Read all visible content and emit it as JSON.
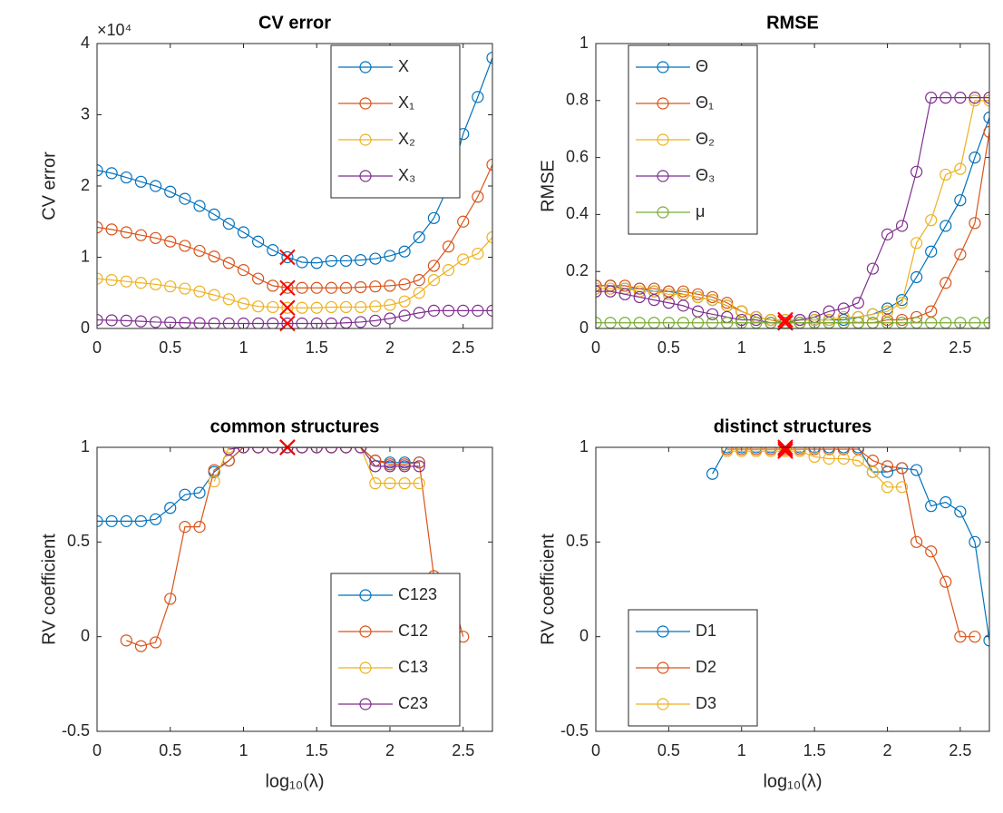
{
  "chart_data": [
    {
      "type": "line",
      "title": "CV error",
      "ylabel": "CV error",
      "y_multiplier": "×10⁴",
      "legend": "northeast",
      "x": [
        0,
        0.1,
        0.2,
        0.3,
        0.4,
        0.5,
        0.6,
        0.7,
        0.8,
        0.9,
        1,
        1.1,
        1.2,
        1.3,
        1.4,
        1.5,
        1.6,
        1.7,
        1.8,
        1.9,
        2,
        2.1,
        2.2,
        2.3,
        2.4,
        2.5,
        2.6,
        2.7
      ],
      "xlim": [
        0,
        2.7
      ],
      "xticks": [
        0,
        0.5,
        1,
        1.5,
        2,
        2.5
      ],
      "ylim": [
        0,
        40000
      ],
      "yticks": [
        {
          "value": 0,
          "label": "0"
        },
        {
          "value": 10000,
          "label": "1"
        },
        {
          "value": 20000,
          "label": "2"
        },
        {
          "value": 30000,
          "label": "3"
        },
        {
          "value": 40000,
          "label": "4"
        }
      ],
      "highlight_x": 1.3,
      "highlight_color": "#ff0000",
      "series": [
        {
          "name": "X",
          "color": "#0072bd",
          "values": [
            22200,
            21800,
            21200,
            20600,
            20000,
            19200,
            18200,
            17200,
            16000,
            14700,
            13500,
            12200,
            11000,
            10000,
            9300,
            9200,
            9500,
            9500,
            9600,
            9800,
            10200,
            10800,
            12800,
            15500,
            20000,
            27300,
            32500,
            38000
          ]
        },
        {
          "name": "X₁",
          "color": "#d95319",
          "values": [
            14200,
            13900,
            13500,
            13100,
            12700,
            12200,
            11600,
            10900,
            10100,
            9200,
            8200,
            7000,
            6000,
            5700,
            5700,
            5700,
            5700,
            5700,
            5800,
            5900,
            6000,
            6200,
            6800,
            8800,
            11500,
            15000,
            18500,
            23000
          ]
        },
        {
          "name": "X₂",
          "color": "#edb120",
          "values": [
            7000,
            6800,
            6600,
            6400,
            6200,
            5900,
            5600,
            5200,
            4700,
            4100,
            3500,
            3100,
            3000,
            2900,
            2900,
            2900,
            3000,
            3000,
            3000,
            3100,
            3300,
            3800,
            5000,
            6800,
            8200,
            9700,
            10500,
            12800
          ]
        },
        {
          "name": "X₃",
          "color": "#7e2f8e",
          "values": [
            1200,
            1150,
            1100,
            1000,
            900,
            850,
            800,
            750,
            700,
            700,
            700,
            700,
            700,
            700,
            700,
            700,
            700,
            800,
            900,
            1100,
            1400,
            1800,
            2200,
            2500,
            2500,
            2500,
            2500,
            2500
          ]
        }
      ]
    },
    {
      "type": "line",
      "title": "RMSE",
      "ylabel": "RMSE",
      "legend": "northwest",
      "x": [
        0,
        0.1,
        0.2,
        0.3,
        0.4,
        0.5,
        0.6,
        0.7,
        0.8,
        0.9,
        1,
        1.1,
        1.2,
        1.3,
        1.4,
        1.5,
        1.6,
        1.7,
        1.8,
        1.9,
        2,
        2.1,
        2.2,
        2.3,
        2.4,
        2.5,
        2.6,
        2.7
      ],
      "xlim": [
        0,
        2.7
      ],
      "xticks": [
        0,
        0.5,
        1,
        1.5,
        2,
        2.5
      ],
      "ylim": [
        0,
        1
      ],
      "yticks": [
        0,
        0.2,
        0.4,
        0.6,
        0.8,
        1
      ],
      "highlight_x": 1.3,
      "highlight_color": "#ff0000",
      "series": [
        {
          "name": "Θ",
          "color": "#0072bd",
          "values": [
            0.15,
            0.15,
            0.14,
            0.14,
            0.13,
            0.13,
            0.12,
            0.11,
            0.1,
            0.08,
            0.06,
            0.04,
            0.03,
            0.03,
            0.03,
            0.03,
            0.03,
            0.03,
            0.04,
            0.05,
            0.07,
            0.1,
            0.18,
            0.27,
            0.36,
            0.45,
            0.6,
            0.74
          ]
        },
        {
          "name": "Θ₁",
          "color": "#d95319",
          "values": [
            0.15,
            0.15,
            0.15,
            0.14,
            0.14,
            0.13,
            0.13,
            0.12,
            0.11,
            0.09,
            0.06,
            0.04,
            0.03,
            0.02,
            0.02,
            0.02,
            0.02,
            0.02,
            0.02,
            0.02,
            0.03,
            0.03,
            0.04,
            0.06,
            0.16,
            0.26,
            0.37,
            0.69
          ]
        },
        {
          "name": "Θ₂",
          "color": "#edb120",
          "values": [
            0.14,
            0.14,
            0.14,
            0.13,
            0.13,
            0.12,
            0.12,
            0.11,
            0.1,
            0.08,
            0.06,
            0.04,
            0.03,
            0.03,
            0.03,
            0.03,
            0.03,
            0.04,
            0.04,
            0.05,
            0.06,
            0.09,
            0.3,
            0.38,
            0.54,
            0.56,
            0.8,
            0.8
          ]
        },
        {
          "name": "Θ₃",
          "color": "#7e2f8e",
          "values": [
            0.13,
            0.13,
            0.12,
            0.11,
            0.1,
            0.09,
            0.08,
            0.06,
            0.05,
            0.04,
            0.03,
            0.03,
            0.02,
            0.02,
            0.03,
            0.04,
            0.06,
            0.07,
            0.09,
            0.21,
            0.33,
            0.36,
            0.55,
            0.81,
            0.81,
            0.81,
            0.81,
            0.81
          ]
        },
        {
          "name": "μ",
          "color": "#77ac30",
          "values": [
            0.02,
            0.02,
            0.02,
            0.02,
            0.02,
            0.02,
            0.02,
            0.02,
            0.02,
            0.02,
            0.02,
            0.02,
            0.02,
            0.02,
            0.02,
            0.02,
            0.02,
            0.02,
            0.02,
            0.02,
            0.02,
            0.02,
            0.02,
            0.02,
            0.02,
            0.02,
            0.02,
            0.02
          ]
        }
      ]
    },
    {
      "type": "line",
      "title": "common structures",
      "ylabel": "RV coefficient",
      "xlabel": "log₁₀(λ)",
      "legend": "southeast",
      "x": [
        0,
        0.1,
        0.2,
        0.3,
        0.4,
        0.5,
        0.6,
        0.7,
        0.8,
        0.9,
        1,
        1.1,
        1.2,
        1.3,
        1.4,
        1.5,
        1.6,
        1.7,
        1.8,
        1.9,
        2,
        2.1,
        2.2,
        2.3,
        2.4,
        2.5,
        2.6,
        2.7
      ],
      "xlim": [
        0,
        2.7
      ],
      "xticks": [
        0,
        0.5,
        1,
        1.5,
        2,
        2.5
      ],
      "ylim": [
        -0.5,
        1
      ],
      "yticks": [
        -0.5,
        0,
        0.5,
        1
      ],
      "highlight_x": 1.3,
      "highlight_color": "#ff0000",
      "series": [
        {
          "name": "C123",
          "color": "#0072bd",
          "values": [
            0.61,
            0.61,
            0.61,
            0.61,
            0.62,
            0.68,
            0.75,
            0.76,
            0.87,
            0.93,
            1,
            1,
            1,
            1,
            1,
            1,
            1,
            1,
            1,
            0.93,
            0.92,
            0.92,
            0.92,
            null,
            null,
            null,
            null,
            null
          ]
        },
        {
          "name": "C12",
          "color": "#d95319",
          "values": [
            null,
            null,
            -0.02,
            -0.05,
            -0.03,
            0.2,
            0.58,
            0.58,
            0.88,
            0.93,
            1,
            1,
            1,
            1,
            1,
            1,
            1,
            1,
            1,
            0.93,
            0.91,
            0.91,
            0.92,
            0.32,
            0.29,
            0.0,
            null,
            null
          ]
        },
        {
          "name": "C13",
          "color": "#edb120",
          "values": [
            null,
            null,
            null,
            null,
            null,
            null,
            null,
            null,
            0.82,
            1,
            1,
            1,
            1,
            1,
            1,
            1,
            1,
            1,
            1,
            0.81,
            0.81,
            0.81,
            0.81,
            null,
            null,
            null,
            null,
            null
          ]
        },
        {
          "name": "C23",
          "color": "#7e2f8e",
          "values": [
            null,
            null,
            null,
            null,
            null,
            null,
            null,
            null,
            null,
            0.99,
            1,
            1,
            1,
            1,
            1,
            1,
            1,
            1,
            1,
            0.9,
            0.9,
            0.9,
            0.9,
            null,
            null,
            null,
            null,
            null
          ]
        }
      ]
    },
    {
      "type": "line",
      "title": "distinct structures",
      "ylabel": "RV coefficient",
      "xlabel": "log₁₀(λ)",
      "legend": "southwest",
      "x": [
        0,
        0.1,
        0.2,
        0.3,
        0.4,
        0.5,
        0.6,
        0.7,
        0.8,
        0.9,
        1,
        1.1,
        1.2,
        1.3,
        1.4,
        1.5,
        1.6,
        1.7,
        1.8,
        1.9,
        2,
        2.1,
        2.2,
        2.3,
        2.4,
        2.5,
        2.6,
        2.7
      ],
      "xlim": [
        0,
        2.7
      ],
      "xticks": [
        0,
        0.5,
        1,
        1.5,
        2,
        2.5
      ],
      "ylim": [
        -0.5,
        1
      ],
      "yticks": [
        -0.5,
        0,
        0.5,
        1
      ],
      "highlight_x": 1.3,
      "highlight_color": "#ff0000",
      "series": [
        {
          "name": "D1",
          "color": "#0072bd",
          "values": [
            null,
            null,
            null,
            null,
            null,
            null,
            null,
            null,
            0.86,
            1,
            1,
            1,
            1,
            1,
            1,
            1,
            1,
            1,
            1,
            0.87,
            0.87,
            0.89,
            0.88,
            0.69,
            0.71,
            0.66,
            0.5,
            -0.02
          ]
        },
        {
          "name": "D2",
          "color": "#d95319",
          "values": [
            null,
            null,
            null,
            null,
            null,
            null,
            null,
            null,
            null,
            0.99,
            0.99,
            0.99,
            0.99,
            0.99,
            0.99,
            0.99,
            0.99,
            0.99,
            0.99,
            0.93,
            0.9,
            0.89,
            0.5,
            0.45,
            0.29,
            0.0,
            0.0,
            null
          ]
        },
        {
          "name": "D3",
          "color": "#edb120",
          "values": [
            null,
            null,
            null,
            null,
            null,
            null,
            null,
            null,
            null,
            0.98,
            0.98,
            0.98,
            0.98,
            0.98,
            0.98,
            0.95,
            0.94,
            0.94,
            0.93,
            0.87,
            0.79,
            0.79,
            null,
            null,
            null,
            null,
            null,
            null
          ]
        }
      ]
    }
  ]
}
